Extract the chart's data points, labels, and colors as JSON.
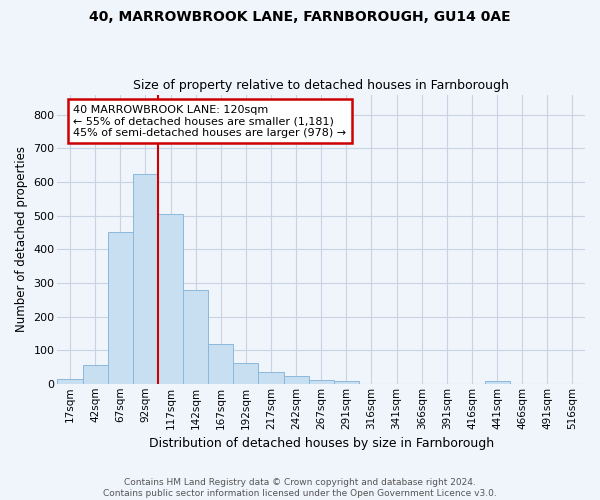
{
  "title1": "40, MARROWBROOK LANE, FARNBOROUGH, GU14 0AE",
  "title2": "Size of property relative to detached houses in Farnborough",
  "xlabel": "Distribution of detached houses by size in Farnborough",
  "ylabel": "Number of detached properties",
  "bar_labels": [
    "17sqm",
    "42sqm",
    "67sqm",
    "92sqm",
    "117sqm",
    "142sqm",
    "167sqm",
    "192sqm",
    "217sqm",
    "242sqm",
    "267sqm",
    "291sqm",
    "316sqm",
    "341sqm",
    "366sqm",
    "391sqm",
    "416sqm",
    "441sqm",
    "466sqm",
    "491sqm",
    "516sqm"
  ],
  "bar_values": [
    13,
    55,
    450,
    625,
    505,
    280,
    118,
    63,
    35,
    22,
    10,
    8,
    0,
    0,
    0,
    0,
    0,
    8,
    0,
    0,
    0
  ],
  "bar_color": "#c8dff2",
  "bar_edgecolor": "#8ab8dc",
  "vline_color": "#cc0000",
  "vline_x_index": 4,
  "annotation_line1": "40 MARROWBROOK LANE: 120sqm",
  "annotation_line2": "← 55% of detached houses are smaller (1,181)",
  "annotation_line3": "45% of semi-detached houses are larger (978) →",
  "annotation_box_facecolor": "#ffffff",
  "annotation_box_edgecolor": "#cc0000",
  "ylim": [
    0,
    860
  ],
  "yticks": [
    0,
    100,
    200,
    300,
    400,
    500,
    600,
    700,
    800
  ],
  "grid_color": "#c8d4e4",
  "bg_color": "#f0f4fb",
  "fig_color": "#f0f4fb",
  "footnote1": "Contains HM Land Registry data © Crown copyright and database right 2024.",
  "footnote2": "Contains public sector information licensed under the Open Government Licence v3.0."
}
